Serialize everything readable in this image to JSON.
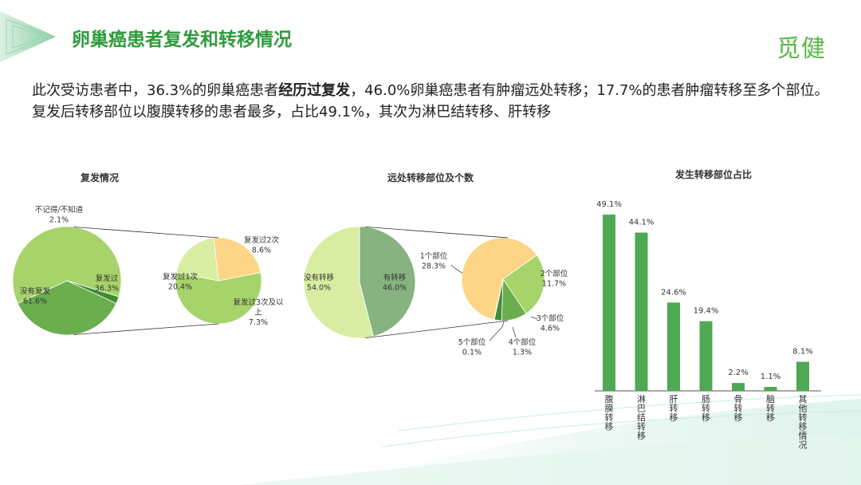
{
  "header": {
    "title": "卵巢癌患者复发和转移情况",
    "logo_text": "觅健"
  },
  "summary": {
    "part1": "此次受访患者中，36.3%的卵巢癌患者",
    "bold": "经历过复发",
    "part2": "，46.0%卵巢癌患者有肿瘤远处转移；17.7%的患者肿瘤转移至多个部位。复发后转移部位以腹膜转移的患者最多，占比49.1%，其次为淋巴结转移、肝转移"
  },
  "colors": {
    "green_dark": "#3d8e34",
    "green_mid": "#6aae4e",
    "green_light": "#a6d36a",
    "green_pale": "#d9eda2",
    "gray_green": "#86b380",
    "peach": "#fdd586",
    "bar": "#4fa853"
  },
  "chart_data": [
    {
      "type": "pie",
      "title": "复发情况",
      "slices": [
        {
          "label": "不记得/不知道",
          "value_label": "2.1%",
          "value": 2.1
        },
        {
          "label": "复发过",
          "value_label": "36.3%",
          "value": 36.3
        },
        {
          "label": "没有复发",
          "value_label": "61.6%",
          "value": 61.6
        }
      ],
      "breakdown_of": "复发过",
      "breakdown": [
        {
          "label": "复发过1次",
          "value_label": "20.4%",
          "value": 20.4
        },
        {
          "label": "复发过2次",
          "value_label": "8.6%",
          "value": 8.6
        },
        {
          "label": "复发过3次及以上",
          "label_line1": "复发过3次及以",
          "label_line2": "上",
          "value_label": "7.3%",
          "value": 7.3
        }
      ]
    },
    {
      "type": "pie",
      "title": "远处转移部位及个数",
      "slices": [
        {
          "label": "有转移",
          "value_label": "46.0%",
          "value": 46.0
        },
        {
          "label": "没有转移",
          "value_label": "54.0%",
          "value": 54.0
        }
      ],
      "breakdown_of": "有转移",
      "breakdown": [
        {
          "label": "1个部位",
          "value_label": "28.3%",
          "value": 28.3
        },
        {
          "label": "2个部位",
          "value_label": "11.7%",
          "value": 11.7
        },
        {
          "label": "3个部位",
          "value_label": "4.6%",
          "value": 4.6
        },
        {
          "label": "4个部位",
          "value_label": "1.3%",
          "value": 1.3
        },
        {
          "label": "5个部位",
          "value_label": "0.1%",
          "value": 0.1
        }
      ]
    },
    {
      "type": "bar",
      "title": "发生转移部位占比",
      "categories": [
        "腹膜转移",
        "淋巴结转移",
        "肝转移",
        "肠转移",
        "骨转移",
        "脑转移",
        "其他转移情况"
      ],
      "values": [
        49.1,
        44.1,
        24.6,
        19.4,
        2.2,
        1.1,
        8.1
      ],
      "value_labels": [
        "49.1%",
        "44.1%",
        "24.6%",
        "19.4%",
        "2.2%",
        "1.1%",
        "8.1%"
      ],
      "ylim": [
        0,
        55
      ]
    }
  ]
}
